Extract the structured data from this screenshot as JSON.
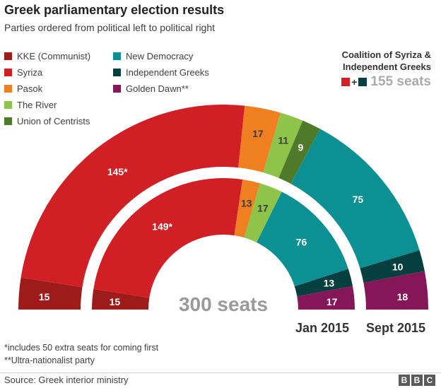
{
  "header": {
    "title": "Greek parliamentary election results",
    "subtitle": "Parties ordered from political left to political right"
  },
  "legend": {
    "col1": [
      {
        "label": "KKE (Communist)",
        "color": "#9e1b1b"
      },
      {
        "label": "Syriza",
        "color": "#d11f26"
      },
      {
        "label": "Pasok",
        "color": "#f07f21"
      },
      {
        "label": "The River",
        "color": "#8dc449"
      },
      {
        "label": "Union of Centrists",
        "color": "#4f7a2a"
      }
    ],
    "col2": [
      {
        "label": "New Democracy",
        "color": "#0c9093"
      },
      {
        "label": "Independent Greeks",
        "color": "#053f3f"
      },
      {
        "label": "Golden Dawn**",
        "color": "#851657"
      }
    ]
  },
  "coalition": {
    "title_line1": "Coalition of Syriza &",
    "title_line2": "Independent Greeks",
    "plus": "+",
    "seats_label": "155 seats",
    "colors": [
      "#d11f26",
      "#053f3f"
    ]
  },
  "chart_data": {
    "type": "semicircle-parliament",
    "total_label": "300 seats",
    "total": 300,
    "rings": [
      {
        "name": "Sept 2015",
        "label": "Sept 2015",
        "segments": [
          {
            "party": "KKE (Communist)",
            "seats": 15,
            "label": "15",
            "color": "#9e1b1b"
          },
          {
            "party": "Syriza",
            "seats": 145,
            "label": "145*",
            "color": "#d11f26"
          },
          {
            "party": "Pasok",
            "seats": 17,
            "label": "17",
            "color": "#f07f21"
          },
          {
            "party": "The River",
            "seats": 11,
            "label": "11",
            "color": "#8dc449"
          },
          {
            "party": "Union of Centrists",
            "seats": 9,
            "label": "9",
            "color": "#4f7a2a"
          },
          {
            "party": "New Democracy",
            "seats": 75,
            "label": "75",
            "color": "#0c9093"
          },
          {
            "party": "Independent Greeks",
            "seats": 10,
            "label": "10",
            "color": "#053f3f"
          },
          {
            "party": "Golden Dawn**",
            "seats": 18,
            "label": "18",
            "color": "#851657"
          }
        ]
      },
      {
        "name": "Jan 2015",
        "label": "Jan 2015",
        "segments": [
          {
            "party": "KKE (Communist)",
            "seats": 15,
            "label": "15",
            "color": "#9e1b1b"
          },
          {
            "party": "Syriza",
            "seats": 149,
            "label": "149*",
            "color": "#d11f26"
          },
          {
            "party": "Pasok",
            "seats": 13,
            "label": "13",
            "color": "#f07f21"
          },
          {
            "party": "The River",
            "seats": 17,
            "label": "17",
            "color": "#8dc449"
          },
          {
            "party": "New Democracy",
            "seats": 76,
            "label": "76",
            "color": "#0c9093"
          },
          {
            "party": "Independent Greeks",
            "seats": 13,
            "label": "13",
            "color": "#053f3f"
          },
          {
            "party": "Golden Dawn**",
            "seats": 17,
            "label": "17",
            "color": "#851657"
          }
        ]
      }
    ]
  },
  "footnotes": {
    "note1": "*includes 50 extra seats for coming first",
    "note2": "**Ultra-nationalist party"
  },
  "footer": {
    "source": "Source: Greek interior ministry",
    "logo": [
      "B",
      "B",
      "C"
    ]
  }
}
